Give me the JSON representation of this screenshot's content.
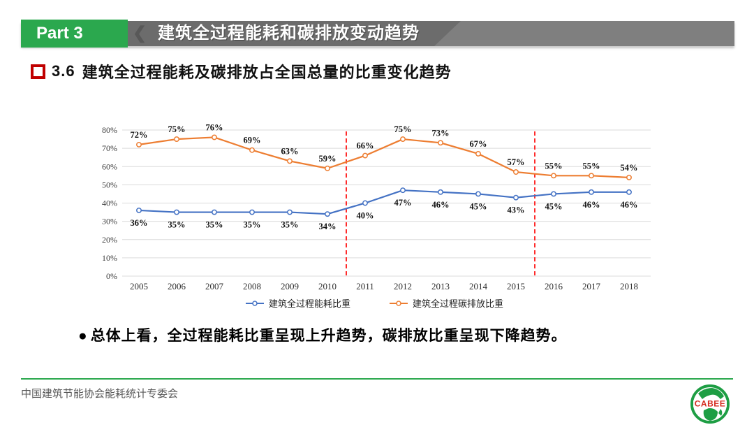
{
  "header": {
    "part_label": "Part 3",
    "title": "建筑全过程能耗和碳排放变动趋势"
  },
  "section": {
    "number": "3.6",
    "title": "建筑全过程能耗及碳排放占全国总量的比重变化趋势"
  },
  "chart_data": {
    "type": "line",
    "categories": [
      "2005",
      "2006",
      "2007",
      "2008",
      "2009",
      "2010",
      "2011",
      "2012",
      "2013",
      "2014",
      "2015",
      "2016",
      "2017",
      "2018"
    ],
    "series": [
      {
        "name": "建筑全过程能耗比重",
        "color": "#4472C4",
        "values": [
          36,
          35,
          35,
          35,
          35,
          34,
          40,
          47,
          46,
          45,
          43,
          45,
          46,
          46
        ],
        "label_position": "below"
      },
      {
        "name": "建筑全过程碳排放比重",
        "color": "#ED7D31",
        "values": [
          72,
          75,
          76,
          69,
          63,
          59,
          66,
          75,
          73,
          67,
          57,
          55,
          55,
          54
        ],
        "label_position": "above"
      }
    ],
    "ylim": [
      0,
      80
    ],
    "ytick_step": 10,
    "tick_suffix": "%",
    "data_label_suffix": "%",
    "grid": true,
    "legend_position": "bottom",
    "dividers": [
      {
        "between": [
          "2010",
          "2011"
        ],
        "color": "#FF2B2B",
        "style": "dashed"
      },
      {
        "between": [
          "2015",
          "2016"
        ],
        "color": "#FF2B2B",
        "style": "dashed"
      }
    ]
  },
  "summary": {
    "bullet": "●",
    "text": "总体上看，全过程能耗比重呈现上升趋势，碳排放比重呈现下降趋势。"
  },
  "footer": {
    "org": "中国建筑节能协会能耗统计专委会",
    "logo_text": "CABEE"
  },
  "colors": {
    "brand_green": "#2BA84E",
    "header_gray": "#7F7F7F",
    "header_gray_dark": "#6C6C6C",
    "accent_red": "#C00000",
    "divider_red": "#FF2B2B",
    "series_blue": "#4472C4",
    "series_orange": "#ED7D31",
    "gridline": "#DBDBDB"
  }
}
